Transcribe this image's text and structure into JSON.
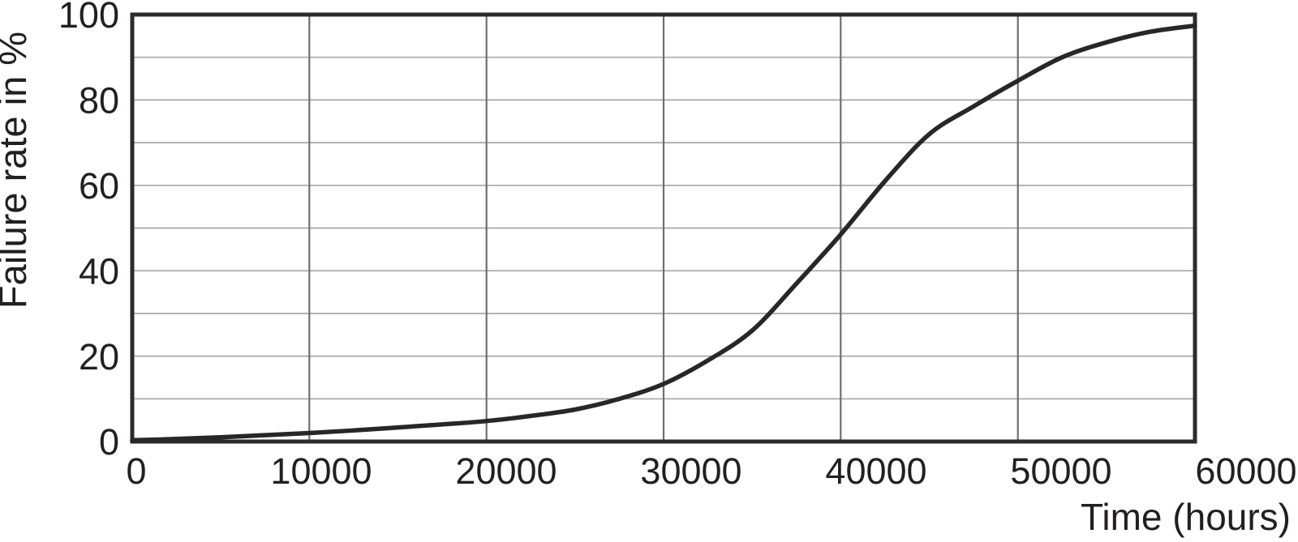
{
  "figure": {
    "background": "#ffffff"
  },
  "chart_data": {
    "type": "line",
    "title": "",
    "xlabel": "Time (hours)",
    "ylabel": "Failure rate in %",
    "xlim": [
      0,
      60000
    ],
    "ylim": [
      0,
      100
    ],
    "x_tick_values": [
      0,
      10000,
      20000,
      30000,
      40000,
      50000,
      60000
    ],
    "x_tick_labels": [
      "0",
      "10000",
      "20000",
      "30000",
      "40000",
      "50000",
      "60000"
    ],
    "y_tick_values": [
      0,
      20,
      40,
      60,
      80,
      100
    ],
    "y_tick_labels": [
      "0",
      "20",
      "40",
      "60",
      "80",
      "100"
    ],
    "x_grid_step": 10000,
    "y_grid_step": 10,
    "grid": true,
    "legend_position": "none",
    "series": [
      {
        "name": "failure-rate-curve",
        "x": [
          0,
          2500,
          5000,
          7500,
          10000,
          12500,
          15000,
          17500,
          20000,
          22500,
          25000,
          27500,
          30000,
          32500,
          35000,
          37500,
          40000,
          42500,
          45000,
          47500,
          50000,
          52500,
          55000,
          57500,
          60000
        ],
        "y": [
          0.3,
          0.6,
          1.0,
          1.5,
          2.0,
          2.6,
          3.3,
          4.0,
          4.8,
          6.0,
          7.5,
          10.0,
          13.5,
          19.0,
          26.0,
          37.0,
          48.5,
          61.0,
          72.0,
          78.5,
          84.5,
          90.0,
          93.5,
          96.0,
          97.4
        ]
      }
    ],
    "colors": {
      "curve": "#272727",
      "plot_border": "#2b2b2b",
      "h_grid": "#a7a7a7",
      "v_grid": "#707070",
      "text": "#231f20"
    }
  }
}
